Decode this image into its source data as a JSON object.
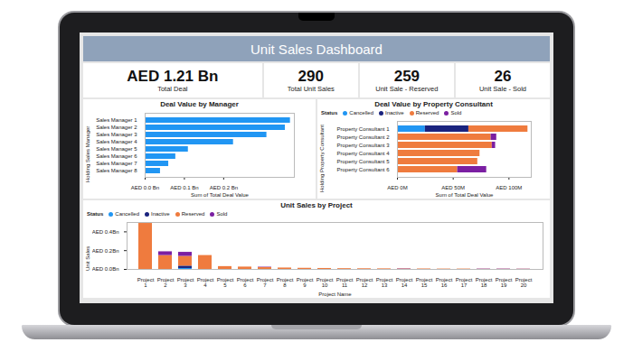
{
  "title": "Unit Sales Dashboard",
  "kpis": [
    {
      "value": "AED 1.21 Bn",
      "label": "Total Deal"
    },
    {
      "value": 290,
      "label": "Total Unit Sales"
    },
    {
      "value": 259,
      "label": "Unit Sale - Reserved"
    },
    {
      "value": 26,
      "label": "Unit Sale - Sold"
    }
  ],
  "chart_data": [
    {
      "type": "bar",
      "title": "Deal Value by Manager",
      "orientation": "horizontal",
      "categories": [
        "Sales Manager 1",
        "Sales Manager 2",
        "Sales Manager 3",
        "Sales Manager 4",
        "Sales Manager 5",
        "Sales Manager 6",
        "Sales Manager 7",
        "Sales Manager 8"
      ],
      "values": [
        0.37,
        0.357,
        0.31,
        0.225,
        0.11,
        0.078,
        0.06,
        0.039
      ],
      "color": "#2196f3",
      "x_label": "Sum of Total Deal Value",
      "y_label": "Holding Sales Manager",
      "xlim": [
        0,
        0.38
      ],
      "xticks": [
        {
          "value": 0,
          "label": "AED 0.0 Bn"
        },
        {
          "value": 0.1,
          "label": "AED 0.1 Bn"
        },
        {
          "value": 0.2,
          "label": "AED 0.2 Bn"
        }
      ]
    },
    {
      "type": "bar",
      "title": "Deal Value by Property Consultant",
      "orientation": "horizontal",
      "stacked": true,
      "legend": "top-left",
      "legend_title": "Status",
      "categories": [
        "Property Consultant 1",
        "Property Consultant 2",
        "Property Consultant 3",
        "Property Consultant 4",
        "Property Consultant 5",
        "Property Consultant 6"
      ],
      "series": [
        {
          "name": "Cancelled",
          "color": "#2196f3",
          "values": [
            25,
            0,
            0,
            0,
            0,
            0
          ]
        },
        {
          "name": "Inactive",
          "color": "#1a237e",
          "values": [
            39,
            0,
            0,
            0,
            0,
            0
          ]
        },
        {
          "name": "Reserved",
          "color": "#ef7b3e",
          "values": [
            53,
            84,
            85,
            74,
            72,
            54
          ]
        },
        {
          "name": "Sold",
          "color": "#7b1fa2",
          "values": [
            0,
            5,
            3,
            0,
            0,
            26
          ]
        }
      ],
      "x_label": "Sum of Total Deal Value",
      "y_label": "Holding Property Consultant",
      "xlim": [
        0,
        120
      ],
      "xticks": [
        {
          "value": 0,
          "label": "AED 0M"
        },
        {
          "value": 50,
          "label": "AED 50M"
        },
        {
          "value": 100,
          "label": "AED 100M"
        }
      ]
    },
    {
      "type": "bar",
      "title": "Unit Sales by Project",
      "stacked": true,
      "legend": "top-left",
      "legend_title": "Status",
      "categories": [
        "Project 1",
        "Project 2",
        "Project 3",
        "Project 4",
        "Project 5",
        "Project 6",
        "Project 7",
        "Project 8",
        "Project 9",
        "Project 10",
        "Project 11",
        "Project 12",
        "Project 13",
        "Project 14",
        "Project 15",
        "Project 16",
        "Project 17",
        "Project 18",
        "Project 19",
        "Project 20"
      ],
      "series": [
        {
          "name": "Cancelled",
          "color": "#2196f3",
          "values": [
            0,
            0,
            0.01,
            0,
            0,
            0,
            0,
            0,
            0,
            0,
            0,
            0,
            0,
            0,
            0,
            0,
            0,
            0,
            0,
            0
          ]
        },
        {
          "name": "Inactive",
          "color": "#1a237e",
          "values": [
            0,
            0,
            0.025,
            0,
            0,
            0,
            0,
            0,
            0,
            0,
            0,
            0,
            0,
            0,
            0,
            0,
            0,
            0,
            0,
            0
          ]
        },
        {
          "name": "Reserved",
          "color": "#ef7b3e",
          "values": [
            0.49,
            0.148,
            0.104,
            0.148,
            0.03,
            0.025,
            0.02,
            0.015,
            0.012,
            0.01,
            0.008,
            0.007,
            0.006,
            0.005,
            0.005,
            0.004,
            0.004,
            0.002,
            0.002,
            0.002
          ]
        },
        {
          "name": "Sold",
          "color": "#7b1fa2",
          "values": [
            0,
            0.04,
            0.043,
            0,
            0,
            0,
            0.004,
            0,
            0,
            0,
            0,
            0,
            0,
            0.003,
            0,
            0,
            0,
            0.003,
            0.003,
            0.002
          ]
        }
      ],
      "x_label": "Project Name",
      "y_label": "Unit Sales",
      "ylim": [
        0,
        0.5
      ],
      "yticks": [
        {
          "value": 0,
          "label": "AED 0.0Bn"
        },
        {
          "value": 0.2,
          "label": "AED 0.2Bn"
        },
        {
          "value": 0.4,
          "label": "AED 0.4Bn"
        }
      ]
    }
  ]
}
